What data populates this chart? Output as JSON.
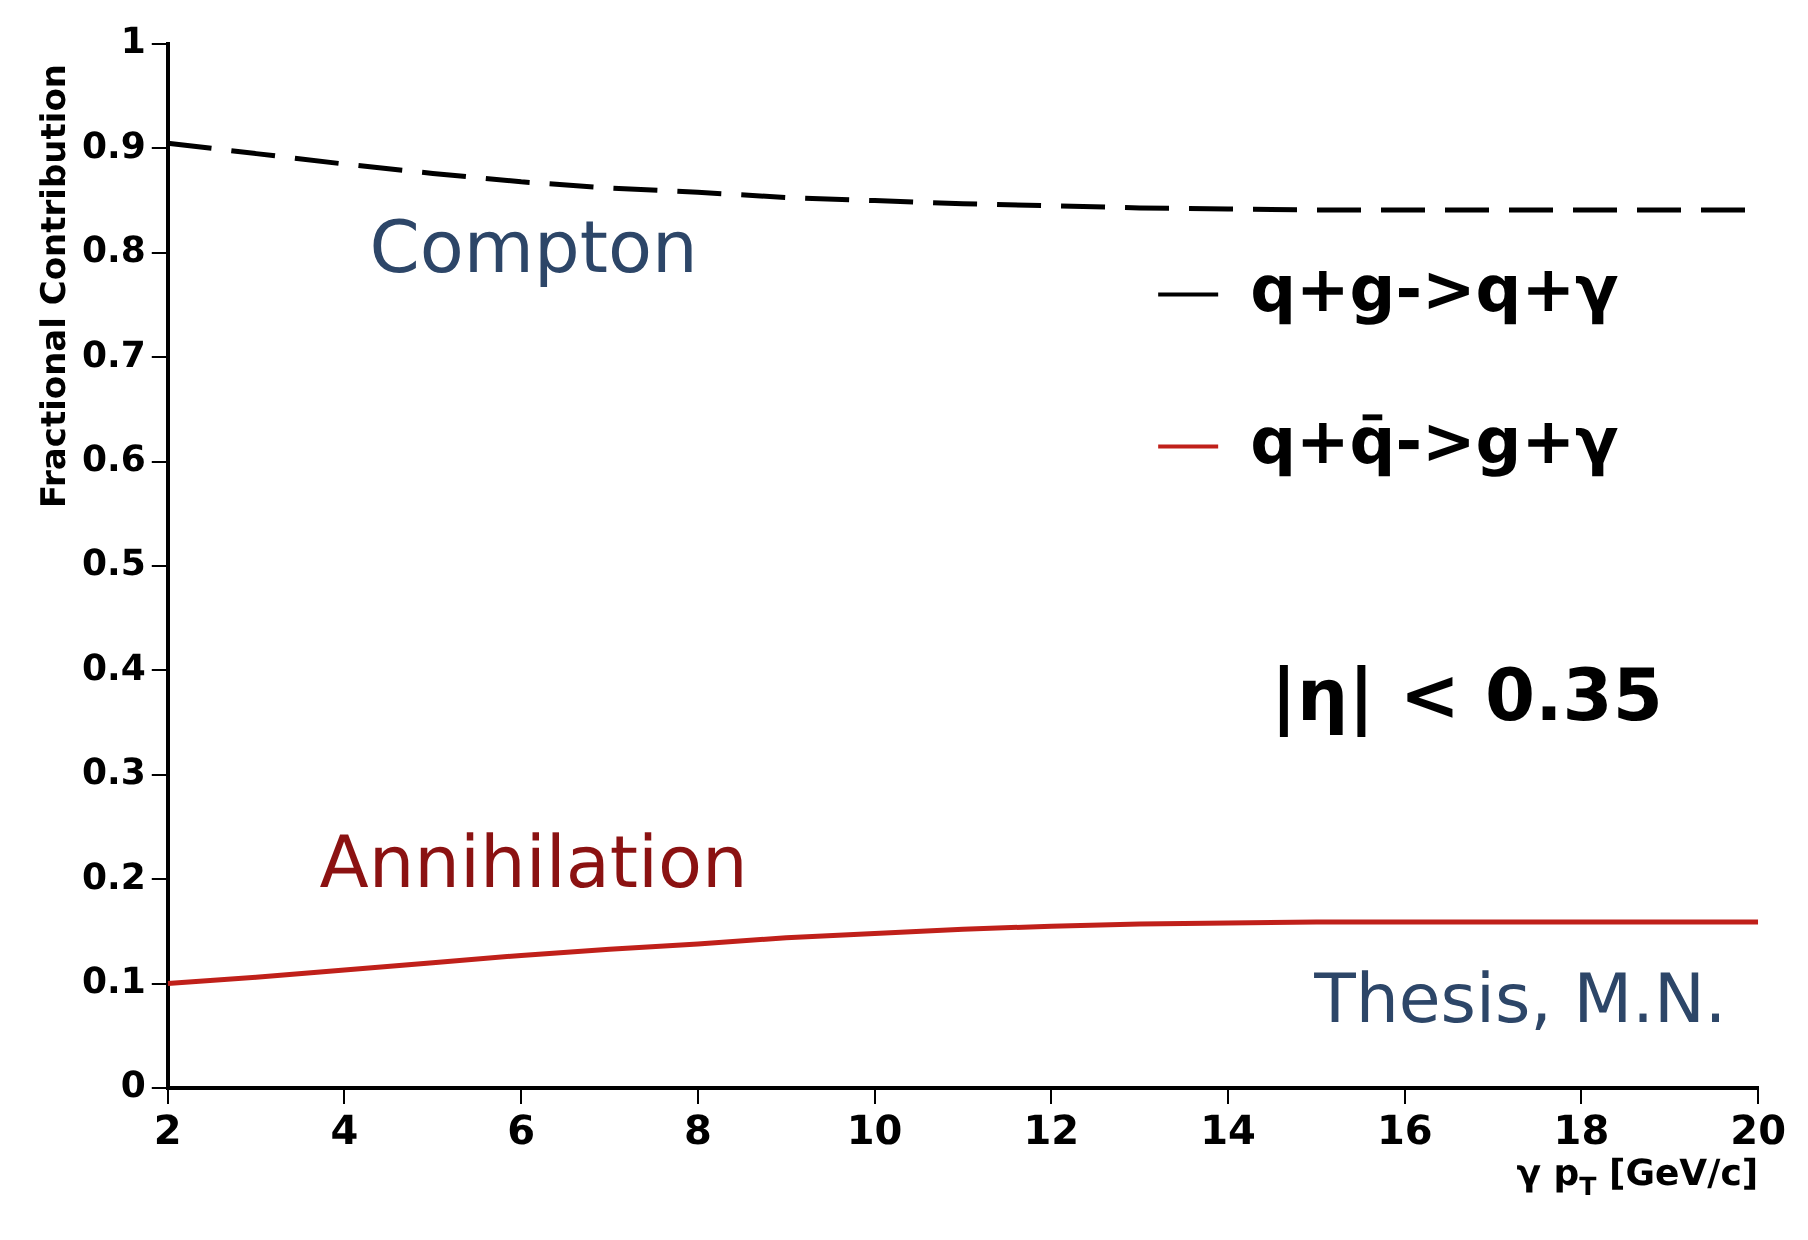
{
  "chart_data": {
    "type": "line",
    "ylabel": "Fractional Contribution",
    "xlabel": "γ p$_{T}$ [GeV/c]",
    "xlim": [
      2,
      20
    ],
    "xticks": [
      2,
      4,
      6,
      8,
      10,
      12,
      14,
      16,
      18,
      20
    ],
    "ylim": [
      0,
      1
    ],
    "yticks": [
      0,
      0.1,
      0.2,
      0.3,
      0.4,
      0.5,
      0.6,
      0.7,
      0.8,
      0.9,
      1
    ],
    "grid": false,
    "legend": "top right",
    "series": [
      {
        "name": "q+g->q+γ",
        "color": "#000000",
        "line_style": "dashed",
        "x": [
          2,
          3,
          4,
          5,
          6,
          7,
          8,
          9,
          10,
          11,
          12,
          13,
          14,
          15,
          16,
          17,
          18,
          19,
          20
        ],
        "values": [
          0.905,
          0.895,
          0.885,
          0.876,
          0.868,
          0.862,
          0.858,
          0.853,
          0.85,
          0.847,
          0.845,
          0.843,
          0.842,
          0.841,
          0.841,
          0.841,
          0.841,
          0.841,
          0.841
        ]
      },
      {
        "name": "q+q̄->g+γ",
        "color": "#c0201a",
        "line_style": "solid",
        "x": [
          2,
          3,
          4,
          5,
          6,
          7,
          8,
          9,
          10,
          11,
          12,
          13,
          14,
          15,
          16,
          17,
          18,
          19,
          20
        ],
        "values": [
          0.1,
          0.106,
          0.113,
          0.12,
          0.127,
          0.133,
          0.138,
          0.144,
          0.148,
          0.152,
          0.155,
          0.157,
          0.158,
          0.159,
          0.159,
          0.159,
          0.159,
          0.159,
          0.159
        ]
      }
    ],
    "annotations": [
      "Compton",
      "Annihilation",
      "|η| < 0.35",
      "Thesis, M.N."
    ]
  }
}
